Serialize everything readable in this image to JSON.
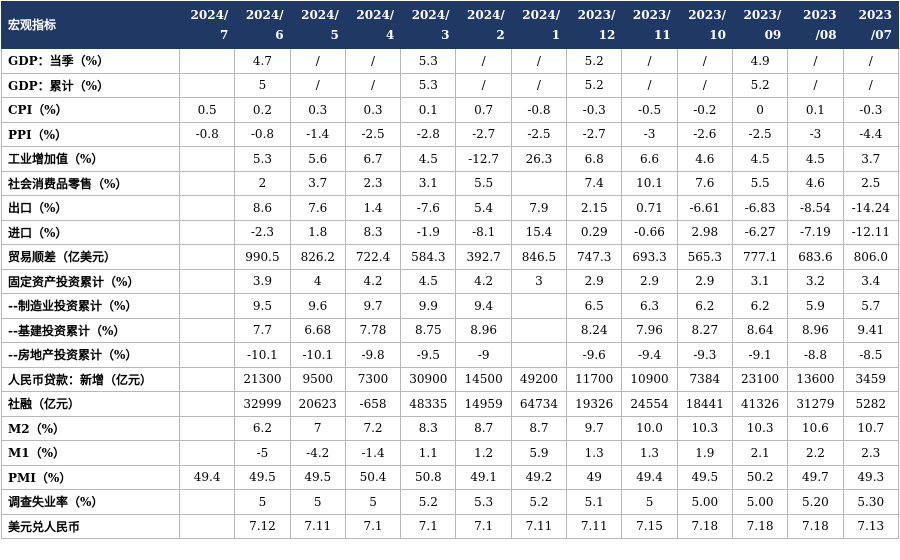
{
  "table": {
    "corner": "宏观指标",
    "columns": [
      [
        "2024/",
        "7"
      ],
      [
        "2024/",
        "6"
      ],
      [
        "2024/",
        "5"
      ],
      [
        "2024/",
        "4"
      ],
      [
        "2024/",
        "3"
      ],
      [
        "2024/",
        "2"
      ],
      [
        "2024/",
        "1"
      ],
      [
        "2023/",
        "12"
      ],
      [
        "2023/",
        "11"
      ],
      [
        "2023/",
        "10"
      ],
      [
        "2023/",
        "09"
      ],
      [
        "2023",
        "/08"
      ],
      [
        "2023",
        "/07"
      ]
    ],
    "rows": [
      {
        "label": "GDP：当季（%）",
        "values": [
          null,
          "4.7",
          "/",
          "/",
          "5.3",
          "/",
          "/",
          "5.2",
          "/",
          "/",
          "4.9",
          "/",
          "/"
        ]
      },
      {
        "label": "GDP：累计（%）",
        "values": [
          null,
          "5",
          "/",
          "/",
          "5.3",
          "/",
          "/",
          "5.2",
          "/",
          "/",
          "5.2",
          "/",
          "/"
        ]
      },
      {
        "label": "CPI（%）",
        "values": [
          "0.5",
          "0.2",
          "0.3",
          "0.3",
          "0.1",
          "0.7",
          "-0.8",
          "-0.3",
          "-0.5",
          "-0.2",
          "0",
          "0.1",
          "-0.3"
        ]
      },
      {
        "label": "PPI（%）",
        "values": [
          "-0.8",
          "-0.8",
          "-1.4",
          "-2.5",
          "-2.8",
          "-2.7",
          "-2.5",
          "-2.7",
          "-3",
          "-2.6",
          "-2.5",
          "-3",
          "-4.4"
        ]
      },
      {
        "label": "工业增加值（%）",
        "values": [
          null,
          "5.3",
          "5.6",
          "6.7",
          "4.5",
          "-12.7",
          "26.3",
          "6.8",
          "6.6",
          "4.6",
          "4.5",
          "4.5",
          "3.7"
        ]
      },
      {
        "label": "社会消费品零售（%）",
        "values": [
          null,
          "2",
          "3.7",
          "2.3",
          "3.1",
          "5.5",
          null,
          "7.4",
          "10.1",
          "7.6",
          "5.5",
          "4.6",
          "2.5"
        ]
      },
      {
        "label": "出口（%）",
        "values": [
          null,
          "8.6",
          "7.6",
          "1.4",
          "-7.6",
          "5.4",
          "7.9",
          "2.15",
          "0.71",
          "-6.61",
          "-6.83",
          "-8.54",
          "-14.24"
        ]
      },
      {
        "label": "进口（%）",
        "values": [
          null,
          "-2.3",
          "1.8",
          "8.3",
          "-1.9",
          "-8.1",
          "15.4",
          "0.29",
          "-0.66",
          "2.98",
          "-6.27",
          "-7.19",
          "-12.11"
        ]
      },
      {
        "label": "贸易顺差（亿美元）",
        "values": [
          null,
          "990.5",
          "826.2",
          "722.4",
          "584.3",
          "392.7",
          "846.5",
          "747.3",
          "693.3",
          "565.3",
          "777.1",
          "683.6",
          "806.0"
        ]
      },
      {
        "label": "固定资产投资累计（%）",
        "values": [
          null,
          "3.9",
          "4",
          "4.2",
          "4.5",
          "4.2",
          "3",
          "2.9",
          "2.9",
          "2.9",
          "3.1",
          "3.2",
          "3.4"
        ]
      },
      {
        "label": "--制造业投资累计（%）",
        "values": [
          null,
          "9.5",
          "9.6",
          "9.7",
          "9.9",
          "9.4",
          null,
          "6.5",
          "6.3",
          "6.2",
          "6.2",
          "5.9",
          "5.7"
        ]
      },
      {
        "label": "--基建投资累计（%）",
        "values": [
          null,
          "7.7",
          "6.68",
          "7.78",
          "8.75",
          "8.96",
          null,
          "8.24",
          "7.96",
          "8.27",
          "8.64",
          "8.96",
          "9.41"
        ]
      },
      {
        "label": "--房地产投资累计（%）",
        "values": [
          null,
          "-10.1",
          "-10.1",
          "-9.8",
          "-9.5",
          "-9",
          null,
          "-9.6",
          "-9.4",
          "-9.3",
          "-9.1",
          "-8.8",
          "-8.5"
        ]
      },
      {
        "label": "人民币贷款：新增（亿元）",
        "values": [
          null,
          "21300",
          "9500",
          "7300",
          "30900",
          "14500",
          "49200",
          "11700",
          "10900",
          "7384",
          "23100",
          "13600",
          "3459"
        ]
      },
      {
        "label": "社融（亿元）",
        "values": [
          null,
          "32999",
          "20623",
          "-658",
          "48335",
          "14959",
          "64734",
          "19326",
          "24554",
          "18441",
          "41326",
          "31279",
          "5282"
        ]
      },
      {
        "label": "M2（%）",
        "values": [
          null,
          "6.2",
          "7",
          "7.2",
          "8.3",
          "8.7",
          "8.7",
          "9.7",
          "10.0",
          "10.3",
          "10.3",
          "10.6",
          "10.7"
        ]
      },
      {
        "label": "M1（%）",
        "values": [
          null,
          "-5",
          "-4.2",
          "-1.4",
          "1.1",
          "1.2",
          "5.9",
          "1.3",
          "1.3",
          "1.9",
          "2.1",
          "2.2",
          "2.3"
        ]
      },
      {
        "label": "PMI（%）",
        "values": [
          "49.4",
          "49.5",
          "49.5",
          "50.4",
          "50.8",
          "49.1",
          "49.2",
          "49",
          "49.4",
          "49.5",
          "50.2",
          "49.7",
          "49.3"
        ]
      },
      {
        "label": "调查失业率（%）",
        "values": [
          null,
          "5",
          "5",
          "5",
          "5.2",
          "5.3",
          "5.2",
          "5.1",
          "5",
          "5.00",
          "5.00",
          "5.20",
          "5.30"
        ]
      },
      {
        "label": "美元兑人民币",
        "values": [
          null,
          "7.12",
          "7.11",
          "7.1",
          "7.1",
          "7.1",
          "7.11",
          "7.11",
          "7.15",
          "7.18",
          "7.18",
          "7.18",
          "7.13"
        ]
      }
    ]
  }
}
